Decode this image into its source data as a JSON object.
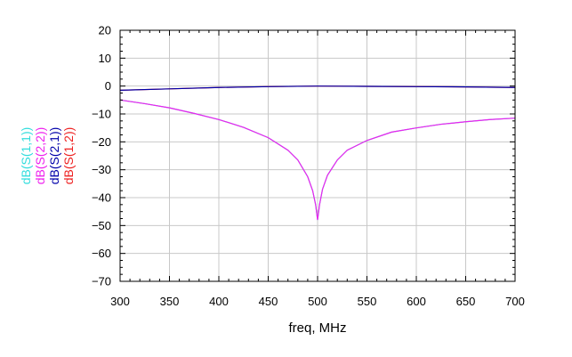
{
  "chart_data": {
    "type": "line",
    "title": "",
    "xlabel": "freq, MHz",
    "ylabel": "",
    "xlim": [
      300,
      700
    ],
    "ylim": [
      -70,
      20
    ],
    "grid": true,
    "x_ticks": [
      300,
      350,
      400,
      450,
      500,
      550,
      600,
      650,
      700
    ],
    "y_ticks": [
      20,
      10,
      0,
      -10,
      -20,
      -30,
      -40,
      -50,
      -60,
      -70
    ],
    "legend": [
      {
        "label": "dB(S(1,1))",
        "color": "#33dddd"
      },
      {
        "label": "dB(S(2,2))",
        "color": "#ee22ee"
      },
      {
        "label": "dB(S(2,1))",
        "color": "#0000aa"
      },
      {
        "label": "dB(S(1,2))",
        "color": "#ee2222"
      }
    ],
    "series": [
      {
        "name": "dB(S(1,1))",
        "color": "#33dddd",
        "x": [
          300,
          325,
          350,
          375,
          400,
          425,
          450,
          470,
          480,
          490,
          495,
          498,
          500,
          502,
          505,
          510,
          520,
          530,
          550,
          575,
          600,
          625,
          650,
          675,
          700
        ],
        "y": [
          -5,
          -6.3,
          -7.8,
          -9.8,
          -12,
          -14.8,
          -18.5,
          -23,
          -26.5,
          -32.5,
          -37.5,
          -42.5,
          -48,
          -42.5,
          -37,
          -32,
          -26.5,
          -23,
          -19.5,
          -16.5,
          -15,
          -13.7,
          -12.8,
          -12.0,
          -11.5
        ]
      },
      {
        "name": "dB(S(2,2))",
        "color": "#ee22ee",
        "x": [
          300,
          325,
          350,
          375,
          400,
          425,
          450,
          470,
          480,
          490,
          495,
          498,
          500,
          502,
          505,
          510,
          520,
          530,
          550,
          575,
          600,
          625,
          650,
          675,
          700
        ],
        "y": [
          -5,
          -6.3,
          -7.8,
          -9.8,
          -12,
          -14.8,
          -18.5,
          -23,
          -26.5,
          -32.5,
          -37.5,
          -42.5,
          -48,
          -42.5,
          -37,
          -32,
          -26.5,
          -23,
          -19.5,
          -16.5,
          -15,
          -13.7,
          -12.8,
          -12.0,
          -11.5
        ]
      },
      {
        "name": "dB(S(1,2))",
        "color": "#ee2222",
        "x": [
          300,
          350,
          400,
          450,
          500,
          550,
          600,
          650,
          700
        ],
        "y": [
          -1.5,
          -1.0,
          -0.5,
          -0.2,
          0,
          -0.1,
          -0.2,
          -0.3,
          -0.5
        ]
      },
      {
        "name": "dB(S(2,1))",
        "color": "#0000aa",
        "x": [
          300,
          350,
          400,
          450,
          500,
          550,
          600,
          650,
          700
        ],
        "y": [
          -1.5,
          -1.0,
          -0.5,
          -0.2,
          0,
          -0.1,
          -0.2,
          -0.3,
          -0.5
        ]
      }
    ]
  }
}
